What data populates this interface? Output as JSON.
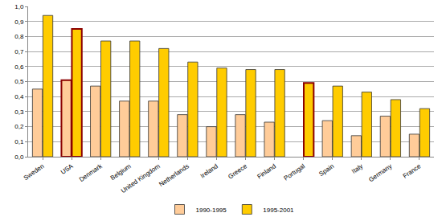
{
  "chart_data": {
    "type": "bar",
    "categories": [
      "Sweden",
      "USA",
      "Denmark",
      "Belgium",
      "United Kingdom",
      "Netherlands",
      "Ireland",
      "Greece",
      "Finland",
      "Portugal",
      "Spain",
      "Italy",
      "Germany",
      "France"
    ],
    "series": [
      {
        "name": "1990-1995",
        "color": "#FFCC99",
        "values": [
          0.45,
          0.51,
          0.47,
          0.37,
          0.37,
          0.28,
          0.2,
          0.28,
          0.23,
          null,
          0.24,
          0.14,
          0.27,
          0.15
        ]
      },
      {
        "name": "1995-2001",
        "color": "#FFCC00",
        "values": [
          0.94,
          0.85,
          0.77,
          0.77,
          0.72,
          0.63,
          0.59,
          0.58,
          0.58,
          0.49,
          0.47,
          0.43,
          0.38,
          0.32
        ]
      }
    ],
    "ylim": [
      0,
      1
    ],
    "yticks": [
      {
        "value": 0,
        "label": "0,0"
      },
      {
        "value": 0.1,
        "label": "0,1"
      },
      {
        "value": 0.2,
        "label": "0,2"
      },
      {
        "value": 0.3,
        "label": "0,3"
      },
      {
        "value": 0.4,
        "label": "0,4"
      },
      {
        "value": 0.5,
        "label": "0,5"
      },
      {
        "value": 0.6,
        "label": "0,6"
      },
      {
        "value": 0.7,
        "label": "0,7"
      },
      {
        "value": 0.8,
        "label": "0,8"
      },
      {
        "value": 0.9,
        "label": "0,9"
      },
      {
        "value": 1,
        "label": "1,0"
      }
    ],
    "grid": true,
    "legend": "bottom"
  }
}
